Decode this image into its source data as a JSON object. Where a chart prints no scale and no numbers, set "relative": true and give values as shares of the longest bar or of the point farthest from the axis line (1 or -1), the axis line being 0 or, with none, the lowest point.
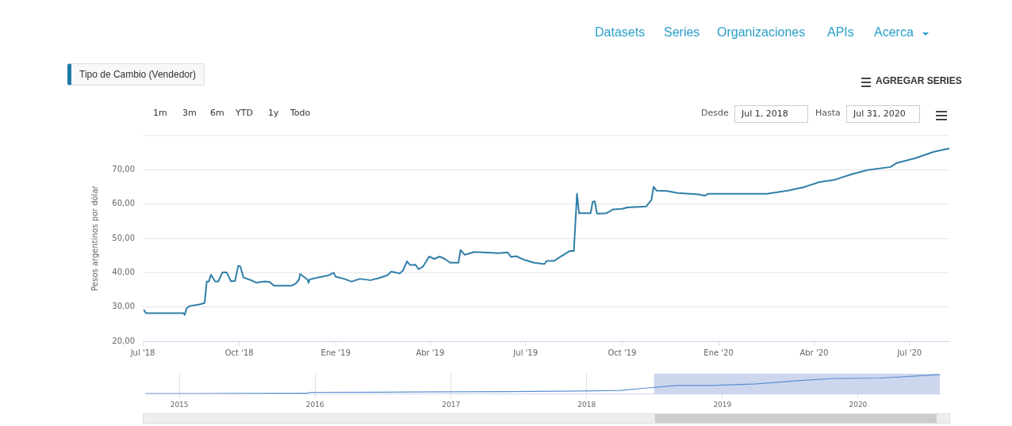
{
  "chart_data": [
    {
      "type": "line",
      "title": "Tipo de Cambio (Vendedor)",
      "ylabel": "Pesos argentinos por dólar",
      "annotations": [
        "Datasets",
        "Series",
        "Organizaciones",
        "APIs",
        "Acerca",
        "AGREGAR SERIES",
        "1m",
        "3m",
        "6m",
        "YTD",
        "1y",
        "Todo",
        "Desde",
        "Jul 1, 2018",
        "Hasta",
        "Jul 31, 2020"
      ],
      "grid": "y",
      "xlim": [
        "2018-07-01",
        "2020-08-08"
      ],
      "xticks": [
        {
          "value": "2018-07-01",
          "label": "Jul '18"
        },
        {
          "value": "2018-10-01",
          "label": "Oct '18"
        },
        {
          "value": "2019-01-01",
          "label": "Ene '19"
        },
        {
          "value": "2019-04-01",
          "label": "Abr '19"
        },
        {
          "value": "2019-07-01",
          "label": "Jul '19"
        },
        {
          "value": "2019-10-01",
          "label": "Oct '19"
        },
        {
          "value": "2020-01-01",
          "label": "Ene '20"
        },
        {
          "value": "2020-04-01",
          "label": "Abr '20"
        },
        {
          "value": "2020-07-01",
          "label": "Jul '20"
        }
      ],
      "ylim": [
        20,
        80
      ],
      "yticks": [
        {
          "value": 20,
          "label": "20,00"
        },
        {
          "value": 30,
          "label": "30,00"
        },
        {
          "value": 40,
          "label": "40,00"
        },
        {
          "value": 50,
          "label": "50,00"
        },
        {
          "value": 60,
          "label": "60,00"
        },
        {
          "value": 70,
          "label": "70,00"
        }
      ],
      "series": [
        {
          "color": "#2f7fa8",
          "x": [
            "2018-07-02",
            "2018-07-04",
            "2018-08-09",
            "2018-08-10",
            "2018-08-12",
            "2018-08-15",
            "2018-08-25",
            "2018-08-29",
            "2018-08-31",
            "2018-09-02",
            "2018-09-04",
            "2018-09-08",
            "2018-09-11",
            "2018-09-15",
            "2018-09-19",
            "2018-09-23",
            "2018-09-27",
            "2018-09-30",
            "2018-10-02",
            "2018-10-05",
            "2018-10-13",
            "2018-10-17",
            "2018-10-25",
            "2018-10-30",
            "2018-11-03",
            "2018-11-20",
            "2018-11-24",
            "2018-11-27",
            "2018-11-28",
            "2018-12-05",
            "2018-12-06",
            "2018-12-07",
            "2018-12-15",
            "2018-12-25",
            "2018-12-30",
            "2019-01-01",
            "2019-01-09",
            "2019-01-16",
            "2019-01-24",
            "2019-02-03",
            "2019-02-11",
            "2019-02-19",
            "2019-02-23",
            "2019-03-03",
            "2019-03-06",
            "2019-03-10",
            "2019-03-13",
            "2019-03-18",
            "2019-03-21",
            "2019-03-25",
            "2019-03-31",
            "2019-04-05",
            "2019-04-10",
            "2019-04-15",
            "2019-04-20",
            "2019-04-28",
            "2019-04-30",
            "2019-05-04",
            "2019-05-13",
            "2019-05-30",
            "2019-06-05",
            "2019-06-14",
            "2019-06-17",
            "2019-06-22",
            "2019-06-30",
            "2019-07-09",
            "2019-07-19",
            "2019-07-21",
            "2019-07-28",
            "2019-08-04",
            "2019-08-12",
            "2019-08-16",
            "2019-08-19",
            "2019-08-21",
            "2019-09-01",
            "2019-09-03",
            "2019-09-05",
            "2019-09-07",
            "2019-09-16",
            "2019-09-22",
            "2019-10-01",
            "2019-10-06",
            "2019-10-24",
            "2019-10-29",
            "2019-10-31",
            "2019-11-03",
            "2019-11-13",
            "2019-11-23",
            "2019-12-13",
            "2019-12-19",
            "2019-12-22",
            "2020-02-16",
            "2020-03-07",
            "2020-03-22",
            "2020-04-06",
            "2020-04-21",
            "2020-05-07",
            "2020-05-22",
            "2020-06-13",
            "2020-06-19",
            "2020-07-06",
            "2020-07-24",
            "2020-08-08"
          ],
          "values": [
            29.2,
            28.2,
            28.2,
            27.7,
            29.7,
            30.3,
            30.8,
            31.2,
            37.4,
            37.4,
            39.4,
            37.4,
            37.4,
            40.1,
            40.1,
            37.5,
            37.6,
            42,
            41.8,
            38.6,
            37.7,
            37.1,
            37.4,
            37.3,
            36.2,
            36.2,
            36.9,
            38,
            39.6,
            38,
            37,
            38,
            38.6,
            39.2,
            40,
            38.8,
            38.2,
            37.4,
            38.2,
            37.8,
            38.4,
            39.2,
            40.3,
            39.8,
            40.6,
            43.3,
            42.2,
            42.3,
            41,
            41.7,
            44.7,
            44,
            44.7,
            44,
            42.9,
            42.9,
            46.6,
            45.2,
            46,
            45.8,
            45.7,
            45.9,
            44.6,
            44.8,
            43.7,
            42.9,
            42.5,
            43.4,
            43.4,
            44.8,
            46.3,
            46.3,
            63,
            57.3,
            57.3,
            60.7,
            60.8,
            57.2,
            57.3,
            58.4,
            58.6,
            59,
            59.3,
            61.2,
            65,
            63.9,
            63.8,
            63.2,
            62.8,
            62.4,
            63,
            63,
            63.9,
            64.9,
            66.4,
            67.1,
            68.7,
            69.9,
            70.8,
            72,
            73.3,
            75.2,
            76.2
          ]
        }
      ]
    },
    {
      "type": "line",
      "relative": true,
      "grid": "x",
      "tick_labels": "x",
      "xlim": [
        "2014-10-01",
        "2020-08-08"
      ],
      "xticks": [
        {
          "value": "2015-01-01",
          "label": "2015"
        },
        {
          "value": "2016-01-01",
          "label": "2016"
        },
        {
          "value": "2017-01-01",
          "label": "2017"
        },
        {
          "value": "2018-01-01",
          "label": "2018"
        },
        {
          "value": "2019-01-01",
          "label": "2019"
        },
        {
          "value": "2020-01-01",
          "label": "2020"
        }
      ],
      "bands": [
        {
          "axis": "x",
          "from": "2018-07-01",
          "to": "2020-08-08",
          "color": "#ccd7ee"
        }
      ],
      "series": [
        {
          "color": "#5b8fcf",
          "x": [
            "2014-10-01",
            "2015-06-01",
            "2015-12-10",
            "2015-12-17",
            "2016-06-01",
            "2016-12-01",
            "2017-06-01",
            "2017-12-01",
            "2018-04-01",
            "2018-06-01",
            "2018-08-30",
            "2018-12-01",
            "2019-04-01",
            "2019-08-12",
            "2019-10-28",
            "2020-03-01",
            "2020-08-08"
          ],
          "values": [
            0,
            0.01,
            0.02,
            0.07,
            0.08,
            0.1,
            0.11,
            0.14,
            0.17,
            0.28,
            0.43,
            0.43,
            0.51,
            0.71,
            0.8,
            0.82,
            1
          ]
        }
      ]
    }
  ]
}
